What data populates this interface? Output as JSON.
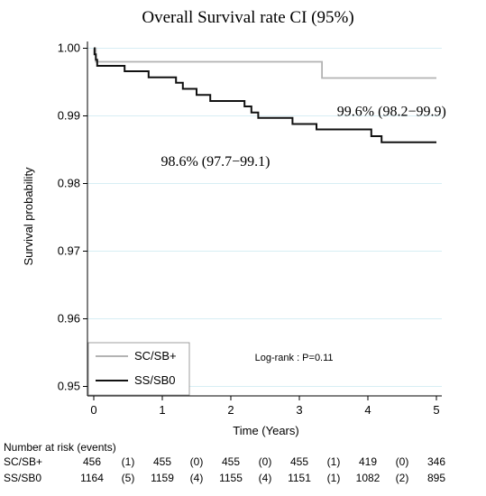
{
  "chart_data": {
    "type": "line",
    "title": "Overall Survival rate CI (95%)",
    "xlabel": "Time (Years)",
    "ylabel": "Survival probability",
    "xlim": [
      0,
      5
    ],
    "ylim": [
      0.95,
      1.0
    ],
    "xticks": [
      "0",
      "1",
      "2",
      "3",
      "4",
      "5"
    ],
    "yticks": [
      "0.95",
      "0.96",
      "0.97",
      "0.98",
      "0.99",
      "1.00"
    ],
    "grid": "horizontal",
    "series": [
      {
        "name": "SC/SB+",
        "color": "#b3b3b3",
        "steps": [
          [
            0,
            1.0
          ],
          [
            0.03,
            0.998
          ],
          [
            3.33,
            0.9956
          ],
          [
            5.0,
            0.9956
          ]
        ]
      },
      {
        "name": "SS/SB0",
        "color": "#111111",
        "steps": [
          [
            0,
            1.0
          ],
          [
            0.01,
            0.9991
          ],
          [
            0.03,
            0.9983
          ],
          [
            0.05,
            0.9974
          ],
          [
            0.45,
            0.9966
          ],
          [
            0.8,
            0.9957
          ],
          [
            1.2,
            0.9949
          ],
          [
            1.3,
            0.994
          ],
          [
            1.5,
            0.9931
          ],
          [
            1.7,
            0.9922
          ],
          [
            2.2,
            0.9914
          ],
          [
            2.3,
            0.9905
          ],
          [
            2.4,
            0.9897
          ],
          [
            2.9,
            0.9888
          ],
          [
            3.25,
            0.988
          ],
          [
            4.05,
            0.987
          ],
          [
            4.2,
            0.9861
          ],
          [
            5.0,
            0.9861
          ]
        ]
      }
    ],
    "annotations": [
      {
        "text": "99.6% (98.2−99.9)",
        "x": 3.55,
        "y": 0.99
      },
      {
        "text": "98.6% (97.7−99.1)",
        "x": 0.98,
        "y": 0.9826
      },
      {
        "text": "Log-rank : P=0.11",
        "x": 2.35,
        "y": 0.9538
      }
    ],
    "legend": {
      "position": "bottom-left",
      "entries": [
        "SC/SB+",
        "SS/SB0"
      ]
    },
    "risk_table": {
      "header": "Number at risk (events)",
      "rows": [
        {
          "label": "SC/SB+",
          "cells": [
            "456",
            "(1)",
            "455",
            "(0)",
            "455",
            "(0)",
            "455",
            "(1)",
            "419",
            "(0)",
            "346"
          ]
        },
        {
          "label": "SS/SB0",
          "cells": [
            "1164",
            "(5)",
            "1159",
            "(4)",
            "1155",
            "(4)",
            "1151",
            "(1)",
            "1082",
            "(2)",
            "895"
          ]
        }
      ]
    }
  }
}
